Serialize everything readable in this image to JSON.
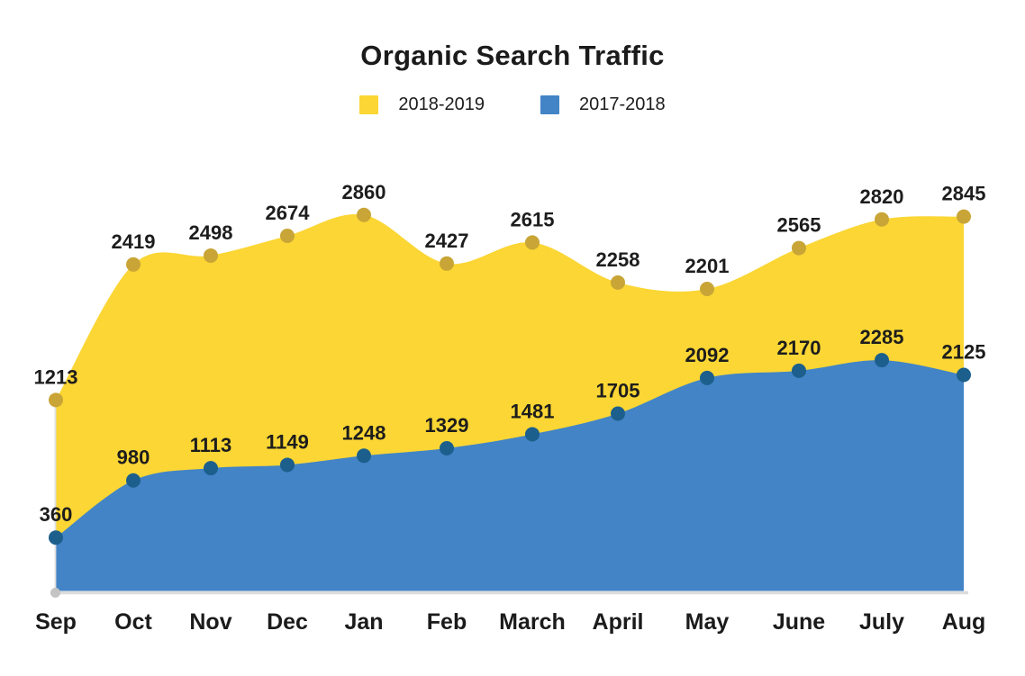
{
  "page": {
    "background": "#FFFFFF",
    "text_color": "#1D1D1D"
  },
  "chart_data": {
    "type": "area",
    "title": "Organic Search Traffic",
    "xlabel": "",
    "ylabel": "",
    "categories": [
      "Sep",
      "Oct",
      "Nov",
      "Dec",
      "Jan",
      "Feb",
      "March",
      "April",
      "May",
      "June",
      "July",
      "Aug"
    ],
    "series": [
      {
        "name": "2018-2019",
        "fill_color": "#FBD634",
        "dot_color": "#C8A536",
        "values": [
          1213,
          2419,
          2498,
          2674,
          2860,
          2427,
          2615,
          2258,
          2201,
          2565,
          2820,
          2845
        ]
      },
      {
        "name": "2017-2018",
        "fill_color": "#4284C6",
        "dot_color": "#1C5F8C",
        "values": [
          360,
          980,
          1113,
          1149,
          1248,
          1329,
          1481,
          1705,
          2092,
          2170,
          2285,
          2125
        ]
      }
    ],
    "legend_position": "top-center",
    "grid": false,
    "y_axis_ticks_visible": false,
    "data_labels": "above-points",
    "axis_color": "#DCDCDC",
    "origin_dot_color": "#C4C4C4"
  }
}
